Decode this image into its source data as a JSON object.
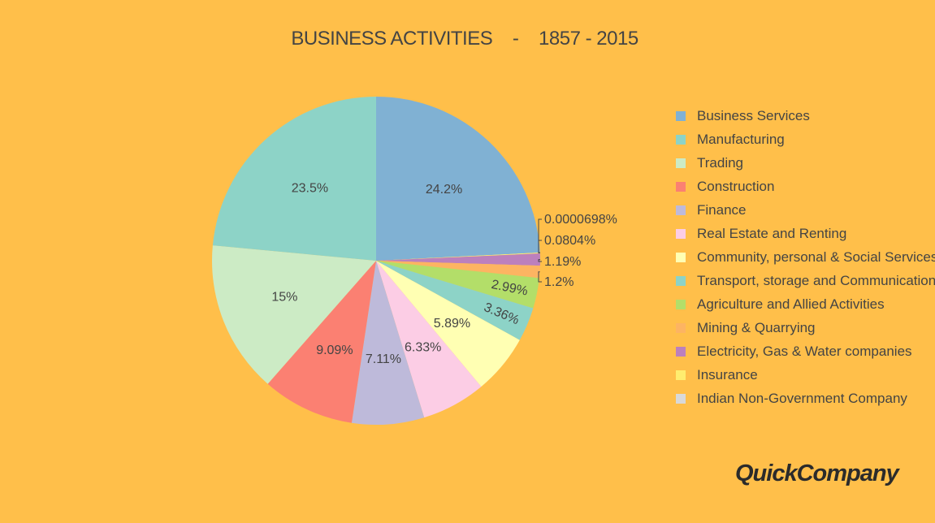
{
  "title": "BUSINESS ACTIVITIES    -    1857 - 2015",
  "brand": {
    "logo_text": "QuickCompany"
  },
  "chart_data": {
    "type": "pie",
    "title": "BUSINESS ACTIVITIES    -    1857 - 2015",
    "legend_position": "right",
    "slices": [
      {
        "name": "Business Services",
        "value": 24.2,
        "label": "24.2%",
        "color": "#80B1D3"
      },
      {
        "name": "Indian Non-Government Company",
        "value": 6.98e-05,
        "label": "0.0000698%",
        "color": "#D9D9D9"
      },
      {
        "name": "Insurance",
        "value": 0.0804,
        "label": "0.0804%",
        "color": "#FFED6F"
      },
      {
        "name": "Electricity, Gas & Water companies",
        "value": 1.19,
        "label": "1.19%",
        "color": "#BC80BD"
      },
      {
        "name": "Mining & Quarrying",
        "value": 1.2,
        "label": "1.2%",
        "color": "#FDB462"
      },
      {
        "name": "Agriculture and Allied Activities",
        "value": 2.99,
        "label": "2.99%",
        "color": "#B3DE69"
      },
      {
        "name": "Transport, storage and Communications",
        "value": 3.36,
        "label": "3.36%",
        "color": "#8DD3C7"
      },
      {
        "name": "Community, personal & Social Services",
        "value": 5.89,
        "label": "5.89%",
        "color": "#FFFFB3"
      },
      {
        "name": "Real Estate and Renting",
        "value": 6.33,
        "label": "6.33%",
        "color": "#FCCDE5"
      },
      {
        "name": "Finance",
        "value": 7.11,
        "label": "7.11%",
        "color": "#BEBADA"
      },
      {
        "name": "Construction",
        "value": 9.09,
        "label": "9.09%",
        "color": "#FB8072"
      },
      {
        "name": "Trading",
        "value": 15,
        "label": "15%",
        "color": "#CCEBC5"
      },
      {
        "name": "Manufacturing",
        "value": 23.5,
        "label": "23.5%",
        "color": "#8DD3C7"
      }
    ],
    "legend": [
      {
        "name": "Business Services",
        "color": "#80B1D3"
      },
      {
        "name": "Manufacturing",
        "color": "#8DD3C7"
      },
      {
        "name": "Trading",
        "color": "#CCEBC5"
      },
      {
        "name": "Construction",
        "color": "#FB8072"
      },
      {
        "name": "Finance",
        "color": "#BEBADA"
      },
      {
        "name": "Real Estate and Renting",
        "color": "#FCCDE5"
      },
      {
        "name": "Community, personal & Social Services",
        "color": "#FFFFB3"
      },
      {
        "name": "Transport, storage and Communications",
        "color": "#8DD3C7"
      },
      {
        "name": "Agriculture and Allied Activities",
        "color": "#B3DE69"
      },
      {
        "name": "Mining & Quarrying",
        "color": "#FDB462"
      },
      {
        "name": "Electricity, Gas & Water companies",
        "color": "#BC80BD"
      },
      {
        "name": "Insurance",
        "color": "#FFED6F"
      },
      {
        "name": "Indian Non-Government Company",
        "color": "#D9D9D9"
      }
    ]
  }
}
